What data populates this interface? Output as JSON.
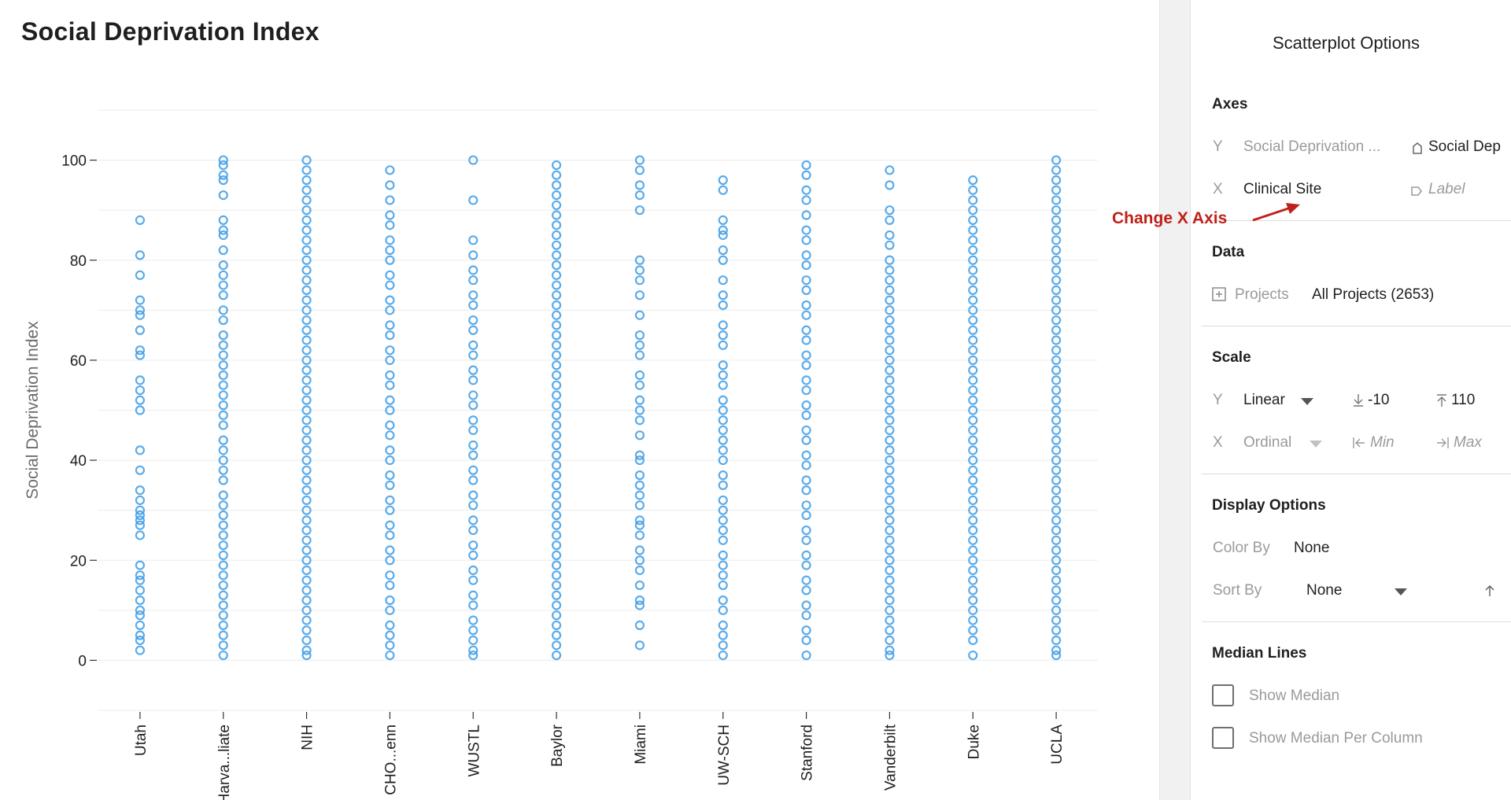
{
  "chart_data": {
    "type": "scatter",
    "title": "Social Deprivation Index",
    "ylabel": "Social Deprivation Index",
    "xlabel": "",
    "ylim": [
      -10,
      110
    ],
    "yticks": [
      0,
      20,
      40,
      60,
      80,
      100
    ],
    "grid": true,
    "categories": [
      "Utah",
      "Harva...liate",
      "NIH",
      "CHO...enn",
      "WUSTL",
      "Baylor",
      "Miami",
      "UW-SCH",
      "Stanford",
      "Vanderbilt",
      "Duke",
      "UCLA"
    ],
    "series": [
      {
        "values": [
          [
            88,
            81,
            77,
            72,
            70,
            69,
            66,
            62,
            61,
            56,
            54,
            52,
            50,
            42,
            38,
            34,
            32,
            30,
            29,
            28,
            27,
            25,
            19,
            17,
            16,
            14,
            12,
            10,
            9,
            7,
            5,
            4,
            2
          ],
          [
            100,
            99,
            97,
            96,
            93,
            88,
            86,
            85,
            82,
            79,
            77,
            75,
            73,
            70,
            68,
            65,
            63,
            61,
            59,
            57,
            55,
            53,
            51,
            49,
            47,
            44,
            42,
            40,
            38,
            36,
            33,
            31,
            29,
            27,
            25,
            23,
            21,
            19,
            17,
            15,
            13,
            11,
            9,
            7,
            5,
            3,
            1
          ],
          [
            100,
            98,
            96,
            94,
            92,
            90,
            88,
            86,
            84,
            82,
            80,
            78,
            76,
            74,
            72,
            70,
            68,
            66,
            64,
            62,
            60,
            58,
            56,
            54,
            52,
            50,
            48,
            46,
            44,
            42,
            40,
            38,
            36,
            34,
            32,
            30,
            28,
            26,
            24,
            22,
            20,
            18,
            16,
            14,
            12,
            10,
            8,
            6,
            4,
            2,
            1
          ],
          [
            98,
            95,
            92,
            89,
            87,
            84,
            82,
            80,
            77,
            75,
            72,
            70,
            67,
            65,
            62,
            60,
            57,
            55,
            52,
            50,
            47,
            45,
            42,
            40,
            37,
            35,
            32,
            30,
            27,
            25,
            22,
            20,
            17,
            15,
            12,
            10,
            7,
            5,
            3,
            1
          ],
          [
            100,
            92,
            84,
            81,
            78,
            76,
            73,
            71,
            68,
            66,
            63,
            61,
            58,
            56,
            53,
            51,
            48,
            46,
            43,
            41,
            38,
            36,
            33,
            31,
            28,
            26,
            23,
            21,
            18,
            16,
            13,
            11,
            8,
            6,
            4,
            2,
            1
          ],
          [
            99,
            97,
            95,
            93,
            91,
            89,
            87,
            85,
            83,
            81,
            79,
            77,
            75,
            73,
            71,
            69,
            67,
            65,
            63,
            61,
            59,
            57,
            55,
            53,
            51,
            49,
            47,
            45,
            43,
            41,
            39,
            37,
            35,
            33,
            31,
            29,
            27,
            25,
            23,
            21,
            19,
            17,
            15,
            13,
            11,
            9,
            7,
            5,
            3,
            1
          ],
          [
            100,
            98,
            95,
            93,
            90,
            80,
            78,
            76,
            73,
            69,
            65,
            63,
            61,
            57,
            55,
            52,
            50,
            48,
            45,
            41,
            40,
            37,
            35,
            33,
            31,
            28,
            27,
            25,
            22,
            20,
            18,
            15,
            12,
            11,
            7,
            3
          ],
          [
            96,
            94,
            88,
            86,
            85,
            82,
            80,
            76,
            73,
            71,
            67,
            65,
            63,
            59,
            57,
            55,
            52,
            50,
            48,
            46,
            44,
            42,
            40,
            37,
            35,
            32,
            30,
            28,
            26,
            24,
            21,
            19,
            17,
            15,
            12,
            10,
            7,
            5,
            3,
            1
          ],
          [
            99,
            97,
            94,
            92,
            89,
            86,
            84,
            81,
            79,
            76,
            74,
            71,
            69,
            66,
            64,
            61,
            59,
            56,
            54,
            51,
            49,
            46,
            44,
            41,
            39,
            36,
            34,
            31,
            29,
            26,
            24,
            21,
            19,
            16,
            14,
            11,
            9,
            6,
            4,
            1
          ],
          [
            98,
            95,
            90,
            88,
            85,
            83,
            80,
            78,
            76,
            74,
            72,
            70,
            68,
            66,
            64,
            62,
            60,
            58,
            56,
            54,
            52,
            50,
            48,
            46,
            44,
            42,
            40,
            38,
            36,
            34,
            32,
            30,
            28,
            26,
            24,
            22,
            20,
            18,
            16,
            14,
            12,
            10,
            8,
            6,
            4,
            2,
            1
          ],
          [
            96,
            94,
            92,
            90,
            88,
            86,
            84,
            82,
            80,
            78,
            76,
            74,
            72,
            70,
            68,
            66,
            64,
            62,
            60,
            58,
            56,
            54,
            52,
            50,
            48,
            46,
            44,
            42,
            40,
            38,
            36,
            34,
            32,
            30,
            28,
            26,
            24,
            22,
            20,
            18,
            16,
            14,
            12,
            10,
            8,
            6,
            4,
            1
          ],
          [
            100,
            98,
            96,
            94,
            92,
            90,
            88,
            86,
            84,
            82,
            80,
            78,
            76,
            74,
            72,
            70,
            68,
            66,
            64,
            62,
            60,
            58,
            56,
            54,
            52,
            50,
            48,
            46,
            44,
            42,
            40,
            38,
            36,
            34,
            32,
            30,
            28,
            26,
            24,
            22,
            20,
            18,
            16,
            14,
            12,
            10,
            8,
            6,
            4,
            2,
            1
          ]
        ]
      }
    ],
    "point_color": "#3d9ce6"
  },
  "options": {
    "title": "Scatterplot Options",
    "axes": {
      "section": "Axes",
      "y_key": "Y",
      "y_value": "Social Deprivation ...",
      "y_label": "Social Dep",
      "x_key": "X",
      "x_value": "Clinical Site",
      "x_label_placeholder": "Label"
    },
    "data": {
      "section": "Data",
      "projects_label": "Projects",
      "projects_value": "All Projects (2653)"
    },
    "scale": {
      "section": "Scale",
      "y_key": "Y",
      "y_type": "Linear",
      "y_min": "-10",
      "y_max": "110",
      "x_key": "X",
      "x_type": "Ordinal",
      "x_min_placeholder": "Min",
      "x_max_placeholder": "Max"
    },
    "display": {
      "section": "Display Options",
      "color_by_label": "Color By",
      "color_by_value": "None",
      "sort_by_label": "Sort By",
      "sort_by_value": "None"
    },
    "median": {
      "section": "Median Lines",
      "show_median": "Show Median",
      "show_median_per_column": "Show Median Per Column"
    }
  },
  "annotation": {
    "text": "Change X Axis",
    "color": "#c0201a"
  }
}
